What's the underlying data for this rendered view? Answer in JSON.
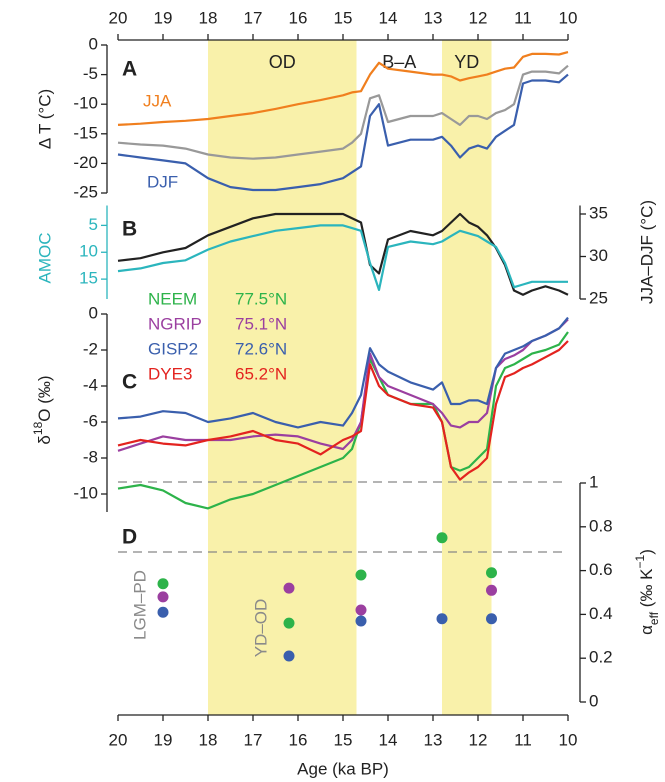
{
  "shared": {
    "xlabel": "Age (ka BP)",
    "xlim": [
      20,
      10
    ],
    "xticks": [
      20,
      19,
      18,
      17,
      16,
      15,
      14,
      13,
      12,
      11,
      10
    ],
    "periods": [
      {
        "label": "OD",
        "from": 18,
        "to": 14.7,
        "shaded": true
      },
      {
        "label": "B–A",
        "from": 14.7,
        "to": 12.8,
        "shaded": false
      },
      {
        "label": "YD",
        "from": 12.8,
        "to": 11.7,
        "shaded": true
      }
    ]
  },
  "chart_data": [
    {
      "type": "line",
      "panel_label": "A",
      "ylabel": "Δ T (°C)",
      "ylim": [
        -25,
        0
      ],
      "yticks": [
        0,
        -5,
        -10,
        -15,
        -20,
        -25
      ],
      "x": [
        20,
        19.5,
        19,
        18.5,
        18,
        17.5,
        17,
        16.5,
        16,
        15.5,
        15,
        14.8,
        14.6,
        14.4,
        14.2,
        14,
        13.5,
        13,
        12.8,
        12.6,
        12.4,
        12.2,
        12,
        11.8,
        11.6,
        11.4,
        11.2,
        11,
        10.8,
        10.5,
        10.2,
        10
      ],
      "series": [
        {
          "name": "JJA",
          "color": "#f07f1e",
          "values": [
            -13.5,
            -13.3,
            -13,
            -12.8,
            -12.5,
            -12,
            -11.5,
            -10.8,
            -10,
            -9.3,
            -8.5,
            -8,
            -7.8,
            -5,
            -3,
            -4,
            -4.5,
            -5,
            -5,
            -5.3,
            -6,
            -5.6,
            -5.3,
            -5,
            -4.5,
            -4,
            -3.8,
            -2,
            -1.5,
            -1.5,
            -1.6,
            -1.2
          ]
        },
        {
          "color": "#999999",
          "values": [
            -16.5,
            -16.8,
            -17,
            -17.5,
            -18.5,
            -19,
            -19.2,
            -19,
            -18.5,
            -18,
            -17.5,
            -16.5,
            -15,
            -9,
            -8.5,
            -13,
            -12,
            -12,
            -11.5,
            -12.5,
            -13.5,
            -12,
            -12,
            -12.5,
            -11.5,
            -11,
            -10,
            -5,
            -4.5,
            -4.5,
            -4.8,
            -3.5
          ]
        },
        {
          "name": "DJF",
          "color": "#3a5fad",
          "values": [
            -18.5,
            -19,
            -19.5,
            -20,
            -22.5,
            -24,
            -24.5,
            -24.5,
            -24,
            -23.5,
            -22.5,
            -21.5,
            -20.5,
            -12,
            -10,
            -17,
            -16,
            -16,
            -15.5,
            -17,
            -19,
            -17.5,
            -17,
            -17.5,
            -15.5,
            -14.5,
            -13.5,
            -6.5,
            -6,
            -6,
            -6.3,
            -5
          ]
        }
      ]
    },
    {
      "type": "line",
      "panel_label": "B",
      "ylabel": "AMOC",
      "y2label": "JJA–DJF (°C)",
      "ylim": [
        18.7,
        1.3
      ],
      "yticks": [
        5,
        10,
        15
      ],
      "y2lim": [
        25,
        36
      ],
      "y2ticks": [
        25,
        30,
        35
      ],
      "y_axis_color": "#2bb5bd",
      "x": [
        20,
        19.5,
        19,
        18.5,
        18,
        17.5,
        17,
        16.5,
        16,
        15.5,
        15,
        14.8,
        14.6,
        14.4,
        14.2,
        14,
        13.5,
        13,
        12.8,
        12.6,
        12.4,
        12.2,
        12,
        11.8,
        11.6,
        11.4,
        11.2,
        11,
        10.8,
        10.5,
        10.2,
        10
      ],
      "series": [
        {
          "color": "#222222",
          "axis": "y2",
          "values": [
            29.5,
            29.8,
            30.5,
            31,
            32.5,
            33.5,
            34.5,
            35,
            35,
            35,
            35,
            34.5,
            34,
            29,
            28,
            32,
            33,
            32.5,
            33,
            34,
            35,
            34,
            33.5,
            32.5,
            31,
            29,
            26,
            25.5,
            26,
            26.5,
            26,
            25.5
          ]
        },
        {
          "color": "#2bb5bd",
          "values": [
            13.5,
            13,
            12,
            11.5,
            9.5,
            8,
            7,
            6,
            5.5,
            5,
            5,
            5.5,
            6,
            12,
            17,
            9,
            8,
            8.5,
            8,
            7,
            6,
            6.5,
            7,
            8,
            9,
            12,
            16.5,
            16,
            15.5,
            15.5,
            15.5,
            15.5
          ]
        }
      ]
    },
    {
      "type": "line",
      "panel_label": "C",
      "ylabel_parts": [
        "δ",
        "18",
        "O (‰)"
      ],
      "ylim": [
        -11,
        0
      ],
      "yticks": [
        0,
        -2,
        -4,
        -6,
        -8,
        -10
      ],
      "x": [
        20,
        19.5,
        19,
        18.5,
        18,
        17.5,
        17,
        16.5,
        16,
        15.5,
        15,
        14.8,
        14.6,
        14.4,
        14.2,
        14,
        13.5,
        13,
        12.8,
        12.6,
        12.4,
        12.2,
        12,
        11.8,
        11.6,
        11.4,
        11.2,
        11,
        10.8,
        10.5,
        10.2,
        10
      ],
      "series": [
        {
          "name": "NEEM",
          "latitude": "77.5°N",
          "color": "#2db34a",
          "values": [
            -9.7,
            -9.5,
            -9.8,
            -10.5,
            -10.8,
            -10.3,
            -10,
            -9.5,
            -9,
            -8.5,
            -8,
            -7.5,
            -6,
            -2.5,
            -3.5,
            -4.5,
            -5,
            -5,
            -6,
            -8.5,
            -8.7,
            -8.5,
            -8,
            -7.5,
            -4,
            -3,
            -2.8,
            -2.5,
            -2.2,
            -2,
            -1.7,
            -1
          ]
        },
        {
          "name": "NGRIP",
          "latitude": "75.1°N",
          "color": "#9b3fa0",
          "values": [
            -7.6,
            -7.2,
            -6.8,
            -7,
            -7,
            -7,
            -6.8,
            -6.7,
            -6.8,
            -7.2,
            -7.5,
            -7,
            -6,
            -2.2,
            -3.5,
            -4,
            -4.5,
            -5,
            -5.5,
            -6.2,
            -6.3,
            -6,
            -6,
            -5.5,
            -3,
            -2.5,
            -2.3,
            -2,
            -1.5,
            -1.2,
            -0.8,
            -0.3
          ]
        },
        {
          "name": "GISP2",
          "latitude": "72.6°N",
          "color": "#3a5fad",
          "values": [
            -5.8,
            -5.7,
            -5.4,
            -5.5,
            -6,
            -5.8,
            -5.5,
            -6,
            -6.3,
            -6,
            -6.2,
            -5.5,
            -4.5,
            -1.9,
            -2.8,
            -3.2,
            -3.8,
            -4.2,
            -3.8,
            -5,
            -5,
            -4.8,
            -4.8,
            -5,
            -3,
            -2.2,
            -2,
            -1.8,
            -1.5,
            -1.2,
            -0.8,
            -0.2
          ]
        },
        {
          "name": "DYE3",
          "latitude": "65.2°N",
          "color": "#e3231f",
          "values": [
            -7.3,
            -7,
            -7.2,
            -7.3,
            -7,
            -6.8,
            -6.5,
            -7,
            -7.2,
            -7.8,
            -7,
            -6.8,
            -6.5,
            -2.8,
            -4,
            -4.5,
            -5,
            -5.2,
            -6,
            -8.5,
            -9.2,
            -8.8,
            -8.5,
            -8,
            -5,
            -3.5,
            -3.3,
            -3,
            -2.8,
            -2.4,
            -2,
            -1.5
          ]
        }
      ]
    },
    {
      "type": "scatter",
      "panel_label": "D",
      "ylabel_parts": [
        "α",
        "eff",
        " (‰ K",
        "−1",
        ")"
      ],
      "y_axis_position": "right",
      "ylim": [
        0,
        1
      ],
      "yticks": [
        0,
        0.2,
        0.4,
        0.6,
        0.8,
        1
      ],
      "annotations": [
        "LGM–PD",
        "YD–OD"
      ],
      "series": [
        {
          "color": "#2db34a",
          "x": [
            19,
            16.2,
            14.6,
            12.8,
            11.7
          ],
          "values": [
            0.54,
            0.36,
            0.58,
            0.75,
            0.59
          ]
        },
        {
          "color": "#9b3fa0",
          "x": [
            19,
            16.2,
            14.6,
            11.7
          ],
          "values": [
            0.48,
            0.52,
            0.42,
            0.51
          ]
        },
        {
          "color": "#3a5fad",
          "x": [
            19,
            16.2,
            14.6,
            12.8,
            11.7
          ],
          "values": [
            0.41,
            0.21,
            0.37,
            0.38,
            0.38
          ]
        }
      ]
    }
  ]
}
